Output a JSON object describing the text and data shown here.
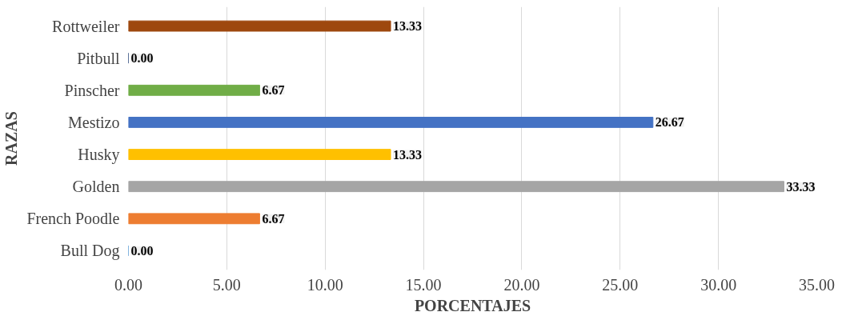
{
  "chart_data": {
    "type": "bar",
    "orientation": "horizontal",
    "xlabel": "PORCENTAJES",
    "ylabel": "RAZAS",
    "categories": [
      "Rottweiler",
      "Pitbull",
      "Pinscher",
      "Mestizo",
      "Husky",
      "Golden",
      "French Poodle",
      "Bull Dog"
    ],
    "values": [
      13.33,
      0,
      6.67,
      26.67,
      13.33,
      33.33,
      6.67,
      0
    ],
    "colors": [
      "#9e480e",
      "#264478",
      "#70ad47",
      "#4472c4",
      "#ffc000",
      "#a5a5a5",
      "#ed7d31",
      "#5b9bd5"
    ],
    "value_labels": [
      "13.33",
      "0.00",
      "6.67",
      "26.67",
      "13.33",
      "33.33",
      "6.67",
      "0.00"
    ],
    "xlim": [
      0,
      35
    ],
    "xticks": [
      {
        "value": 0,
        "label": "0.00"
      },
      {
        "value": 5,
        "label": "5.00"
      },
      {
        "value": 10,
        "label": "10.00"
      },
      {
        "value": 15,
        "label": "15.00"
      },
      {
        "value": 20,
        "label": "20.00"
      },
      {
        "value": 25,
        "label": "25.00"
      },
      {
        "value": 30,
        "label": "30.00"
      },
      {
        "value": 35,
        "label": "35.00"
      }
    ],
    "grid": "x"
  }
}
